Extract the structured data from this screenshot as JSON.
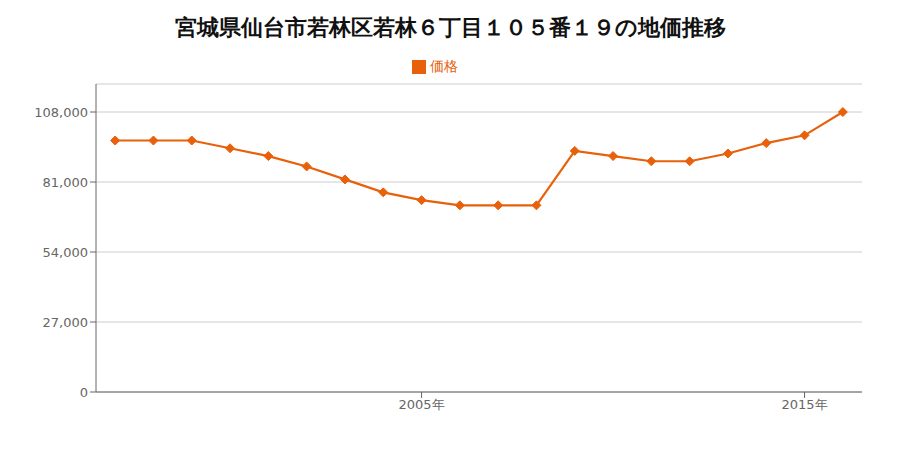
{
  "chart_data": {
    "type": "line",
    "title": "宮城県仙台市若林区若林６丁目１０５番１９の地価推移",
    "x": [
      1997,
      1998,
      1999,
      2000,
      2001,
      2002,
      2003,
      2004,
      2005,
      2006,
      2007,
      2008,
      2009,
      2010,
      2011,
      2012,
      2013,
      2014,
      2015,
      2016
    ],
    "series": [
      {
        "name": "価格",
        "color": "#e8600a",
        "marker": "diamond",
        "values": [
          97000,
          97000,
          97000,
          94000,
          91000,
          87000,
          82000,
          77000,
          74000,
          72000,
          72000,
          72000,
          93000,
          91000,
          89000,
          89000,
          92000,
          96000,
          99000,
          108000
        ]
      }
    ],
    "xlim": [
      1996.5,
      2016.5
    ],
    "xticks": [
      {
        "value": 2005,
        "label": "2005年"
      },
      {
        "value": 2015,
        "label": "2015年"
      }
    ],
    "ylim": [
      0,
      118800
    ],
    "yticks": [
      0,
      {
        "value": 27000,
        "label": "27,000"
      },
      {
        "value": 54000,
        "label": "54,000"
      },
      {
        "value": 81000,
        "label": "81,000"
      },
      {
        "value": 108000,
        "label": "108,000"
      }
    ],
    "grid": "y",
    "legend": "top"
  }
}
